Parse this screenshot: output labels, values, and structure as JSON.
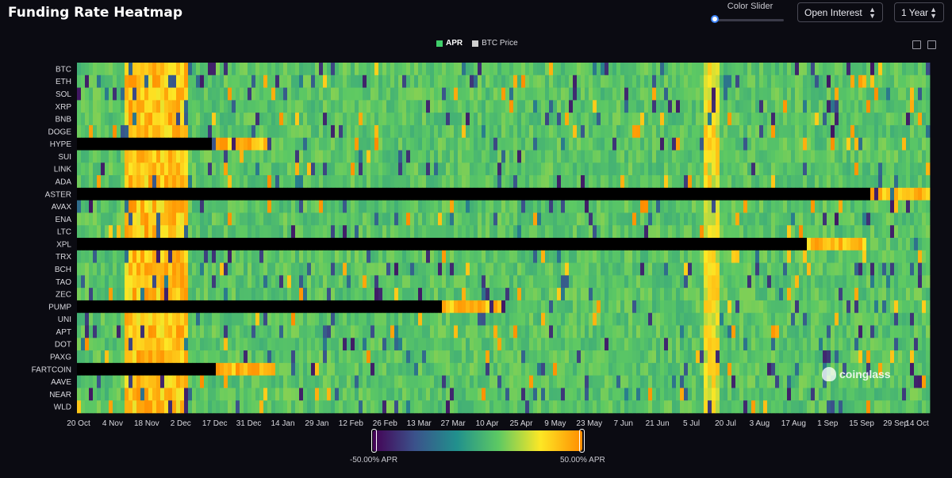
{
  "title": "Funding Rate Heatmap",
  "controls": {
    "color_slider_label": "Color Slider",
    "metric_select": "Open Interest",
    "range_select": "1 Year"
  },
  "legend": [
    {
      "label": "APR",
      "color": "#3fcf6a"
    },
    {
      "label": "BTC Price",
      "color": "#d0d0d0"
    }
  ],
  "watermark": "coinglass",
  "colors": {
    "low": "#440154",
    "mid": "#21908d",
    "high": "#fde725",
    "max": "#ff8c00",
    "missing": "#000000"
  },
  "chart_data": {
    "type": "heatmap",
    "title": "Funding Rate Heatmap",
    "value_unit": "APR %",
    "color_scale": {
      "min": -50,
      "max": 50,
      "min_label": "-50.00% APR",
      "max_label": "50.00% APR"
    },
    "rows": [
      "BTC",
      "ETH",
      "SOL",
      "XRP",
      "BNB",
      "DOGE",
      "HYPE",
      "SUI",
      "LINK",
      "ADA",
      "ASTER",
      "AVAX",
      "ENA",
      "LTC",
      "XPL",
      "TRX",
      "BCH",
      "TAO",
      "ZEC",
      "PUMP",
      "UNI",
      "APT",
      "DOT",
      "PAXG",
      "FARTCOIN",
      "AAVE",
      "NEAR",
      "WLD"
    ],
    "x_ticks": [
      "20 Oct",
      "4 Nov",
      "18 Nov",
      "2 Dec",
      "17 Dec",
      "31 Dec",
      "14 Jan",
      "29 Jan",
      "12 Feb",
      "26 Feb",
      "13 Mar",
      "27 Mar",
      "10 Apr",
      "25 Apr",
      "9 May",
      "23 May",
      "7 Jun",
      "21 Jun",
      "5 Jul",
      "20 Jul",
      "3 Aug",
      "17 Aug",
      "1 Sep",
      "15 Sep",
      "29 Sep",
      "14 Oct"
    ],
    "x_range_days": [
      0,
      359
    ],
    "listing_start_day": {
      "HYPE": 57,
      "ASTER": 334,
      "XPL": 308,
      "PUMP": 154,
      "FARTCOIN": 58
    },
    "hot_periods": [
      {
        "start_day": 20,
        "end_day": 46,
        "level": 38,
        "note": "Nov-Dec 2024 high funding across majors"
      },
      {
        "start_day": 263,
        "end_day": 270,
        "level": 28,
        "note": "late July elevated funding"
      }
    ],
    "typical_level": 8
  }
}
